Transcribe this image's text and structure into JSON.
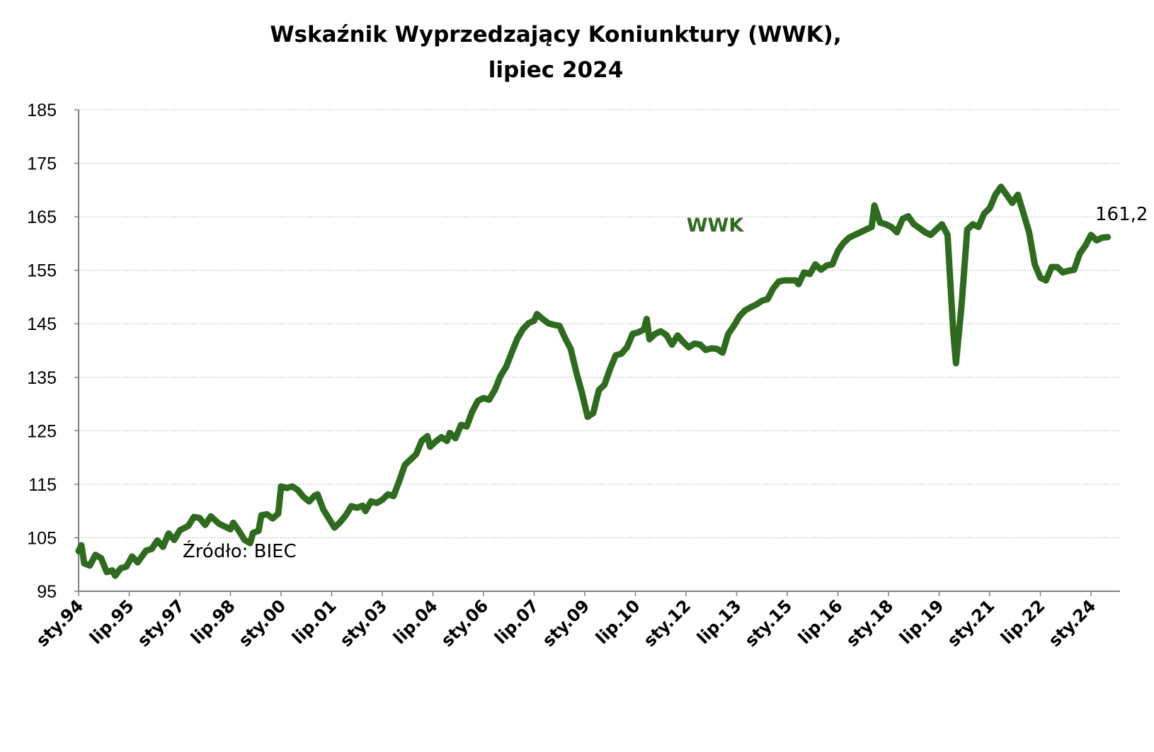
{
  "chart_data": {
    "type": "line",
    "title_line1": "Wskaźnik Wyprzedzający Koniunktury (WWK),",
    "title_line2": "lipiec 2024",
    "source": "Źródło: BIEC",
    "ylim": [
      95,
      185
    ],
    "yticks": [
      95,
      105,
      115,
      125,
      135,
      145,
      155,
      165,
      175,
      185
    ],
    "grid": "horizontal-dotted",
    "x_start": "1994-01",
    "x_end": "2024-07",
    "xtick_labels": [
      {
        "label": "sty.94",
        "date": "1994-01"
      },
      {
        "label": "lip.95",
        "date": "1995-07"
      },
      {
        "label": "sty.97",
        "date": "1997-01"
      },
      {
        "label": "lip.98",
        "date": "1998-07"
      },
      {
        "label": "sty.00",
        "date": "2000-01"
      },
      {
        "label": "lip.01",
        "date": "2001-07"
      },
      {
        "label": "sty.03",
        "date": "2003-01"
      },
      {
        "label": "lip.04",
        "date": "2004-07"
      },
      {
        "label": "sty.06",
        "date": "2006-01"
      },
      {
        "label": "lip.07",
        "date": "2007-07"
      },
      {
        "label": "sty.09",
        "date": "2009-01"
      },
      {
        "label": "lip.10",
        "date": "2010-07"
      },
      {
        "label": "sty.12",
        "date": "2012-01"
      },
      {
        "label": "lip.13",
        "date": "2013-07"
      },
      {
        "label": "sty.15",
        "date": "2015-01"
      },
      {
        "label": "lip.16",
        "date": "2016-07"
      },
      {
        "label": "sty.18",
        "date": "2018-01"
      },
      {
        "label": "lip.19",
        "date": "2019-07"
      },
      {
        "label": "sty.21",
        "date": "2021-01"
      },
      {
        "label": "lip.22",
        "date": "2022-07"
      },
      {
        "label": "sty.24",
        "date": "2024-01"
      }
    ],
    "series": [
      {
        "name": "WWK",
        "color": "#2e6b1f",
        "last_value_label": "161,2",
        "points": [
          [
            "1994-01",
            102.5
          ],
          [
            "1994-02",
            103.6
          ],
          [
            "1994-03",
            100.2
          ],
          [
            "1994-05",
            99.8
          ],
          [
            "1994-07",
            101.8
          ],
          [
            "1994-09",
            101.2
          ],
          [
            "1994-11",
            98.6
          ],
          [
            "1995-01",
            98.9
          ],
          [
            "1995-02",
            97.9
          ],
          [
            "1995-04",
            99.3
          ],
          [
            "1995-06",
            99.6
          ],
          [
            "1995-08",
            101.5
          ],
          [
            "1995-10",
            100.4
          ],
          [
            "1996-01",
            102.6
          ],
          [
            "1996-03",
            102.9
          ],
          [
            "1996-05",
            104.5
          ],
          [
            "1996-07",
            103.3
          ],
          [
            "1996-09",
            105.8
          ],
          [
            "1996-11",
            104.6
          ],
          [
            "1997-01",
            106.4
          ],
          [
            "1997-04",
            107.2
          ],
          [
            "1997-06",
            108.9
          ],
          [
            "1997-08",
            108.7
          ],
          [
            "1997-10",
            107.4
          ],
          [
            "1997-12",
            109.0
          ],
          [
            "1998-03",
            107.6
          ],
          [
            "1998-05",
            107.1
          ],
          [
            "1998-07",
            106.6
          ],
          [
            "1998-08",
            107.8
          ],
          [
            "1998-10",
            106.3
          ],
          [
            "1998-12",
            104.6
          ],
          [
            "1999-02",
            104.0
          ],
          [
            "1999-03",
            105.9
          ],
          [
            "1999-05",
            106.3
          ],
          [
            "1999-06",
            109.2
          ],
          [
            "1999-08",
            109.4
          ],
          [
            "1999-10",
            108.6
          ],
          [
            "1999-12",
            109.5
          ],
          [
            "2000-01",
            114.6
          ],
          [
            "2000-03",
            114.3
          ],
          [
            "2000-05",
            114.6
          ],
          [
            "2000-07",
            113.9
          ],
          [
            "2000-09",
            112.6
          ],
          [
            "2000-11",
            111.8
          ],
          [
            "2001-01",
            112.9
          ],
          [
            "2001-02",
            113.1
          ],
          [
            "2001-04",
            110.3
          ],
          [
            "2001-06",
            108.6
          ],
          [
            "2001-08",
            106.9
          ],
          [
            "2001-10",
            107.9
          ],
          [
            "2001-12",
            109.2
          ],
          [
            "2002-02",
            110.9
          ],
          [
            "2002-04",
            110.6
          ],
          [
            "2002-06",
            111.0
          ],
          [
            "2002-07",
            110.0
          ],
          [
            "2002-09",
            111.8
          ],
          [
            "2002-11",
            111.5
          ],
          [
            "2003-01",
            112.1
          ],
          [
            "2003-03",
            113.1
          ],
          [
            "2003-05",
            112.8
          ],
          [
            "2003-07",
            115.6
          ],
          [
            "2003-09",
            118.6
          ],
          [
            "2003-11",
            119.6
          ],
          [
            "2004-01",
            120.6
          ],
          [
            "2004-03",
            123.1
          ],
          [
            "2004-05",
            124.0
          ],
          [
            "2004-06",
            122.0
          ],
          [
            "2004-08",
            123.0
          ],
          [
            "2004-10",
            123.8
          ],
          [
            "2004-12",
            123.1
          ],
          [
            "2005-01",
            124.6
          ],
          [
            "2005-03",
            123.6
          ],
          [
            "2005-05",
            126.1
          ],
          [
            "2005-07",
            125.8
          ],
          [
            "2005-09",
            128.6
          ],
          [
            "2005-11",
            130.6
          ],
          [
            "2006-01",
            131.1
          ],
          [
            "2006-03",
            130.8
          ],
          [
            "2006-05",
            132.6
          ],
          [
            "2006-07",
            135.2
          ],
          [
            "2006-09",
            136.9
          ],
          [
            "2006-11",
            139.6
          ],
          [
            "2007-01",
            142.2
          ],
          [
            "2007-03",
            144.0
          ],
          [
            "2007-05",
            145.1
          ],
          [
            "2007-07",
            145.6
          ],
          [
            "2007-08",
            146.8
          ],
          [
            "2007-10",
            145.9
          ],
          [
            "2007-12",
            145.1
          ],
          [
            "2008-02",
            144.8
          ],
          [
            "2008-04",
            144.6
          ],
          [
            "2008-06",
            142.3
          ],
          [
            "2008-08",
            140.3
          ],
          [
            "2008-10",
            135.9
          ],
          [
            "2008-12",
            132.1
          ],
          [
            "2009-02",
            127.6
          ],
          [
            "2009-04",
            128.3
          ],
          [
            "2009-06",
            132.6
          ],
          [
            "2009-08",
            133.6
          ],
          [
            "2009-10",
            136.6
          ],
          [
            "2009-12",
            139.1
          ],
          [
            "2010-02",
            139.4
          ],
          [
            "2010-04",
            140.6
          ],
          [
            "2010-06",
            143.1
          ],
          [
            "2010-08",
            143.4
          ],
          [
            "2010-10",
            143.9
          ],
          [
            "2010-11",
            145.9
          ],
          [
            "2010-12",
            142.1
          ],
          [
            "2011-02",
            143.1
          ],
          [
            "2011-04",
            143.6
          ],
          [
            "2011-06",
            142.9
          ],
          [
            "2011-08",
            141.1
          ],
          [
            "2011-10",
            142.8
          ],
          [
            "2011-12",
            141.6
          ],
          [
            "2012-02",
            140.6
          ],
          [
            "2012-04",
            141.3
          ],
          [
            "2012-06",
            141.1
          ],
          [
            "2012-08",
            140.1
          ],
          [
            "2012-10",
            140.4
          ],
          [
            "2012-12",
            140.3
          ],
          [
            "2013-02",
            139.6
          ],
          [
            "2013-04",
            143.1
          ],
          [
            "2013-06",
            144.6
          ],
          [
            "2013-08",
            146.4
          ],
          [
            "2013-10",
            147.5
          ],
          [
            "2013-12",
            148.1
          ],
          [
            "2014-02",
            148.6
          ],
          [
            "2014-04",
            149.3
          ],
          [
            "2014-06",
            149.6
          ],
          [
            "2014-08",
            151.6
          ],
          [
            "2014-10",
            152.9
          ],
          [
            "2014-12",
            153.1
          ],
          [
            "2015-02",
            153.1
          ],
          [
            "2015-04",
            153.1
          ],
          [
            "2015-05",
            152.4
          ],
          [
            "2015-07",
            154.6
          ],
          [
            "2015-09",
            154.3
          ],
          [
            "2015-11",
            156.1
          ],
          [
            "2016-01",
            155.1
          ],
          [
            "2016-03",
            155.9
          ],
          [
            "2016-05",
            156.1
          ],
          [
            "2016-07",
            158.6
          ],
          [
            "2016-09",
            160.1
          ],
          [
            "2016-11",
            161.1
          ],
          [
            "2017-01",
            161.6
          ],
          [
            "2017-03",
            162.1
          ],
          [
            "2017-05",
            162.6
          ],
          [
            "2017-07",
            163.1
          ],
          [
            "2017-08",
            167.1
          ],
          [
            "2017-10",
            163.9
          ],
          [
            "2017-12",
            163.6
          ],
          [
            "2018-02",
            163.1
          ],
          [
            "2018-04",
            162.1
          ],
          [
            "2018-06",
            164.6
          ],
          [
            "2018-08",
            165.1
          ],
          [
            "2018-10",
            163.6
          ],
          [
            "2018-12",
            162.9
          ],
          [
            "2019-02",
            162.1
          ],
          [
            "2019-04",
            161.6
          ],
          [
            "2019-06",
            162.6
          ],
          [
            "2019-08",
            163.6
          ],
          [
            "2019-10",
            161.6
          ],
          [
            "2019-12",
            143.6
          ],
          [
            "2020-01",
            137.6
          ],
          [
            "2020-03",
            148.6
          ],
          [
            "2020-05",
            162.6
          ],
          [
            "2020-07",
            163.6
          ],
          [
            "2020-09",
            163.1
          ],
          [
            "2020-11",
            165.6
          ],
          [
            "2021-01",
            166.6
          ],
          [
            "2021-03",
            169.1
          ],
          [
            "2021-05",
            170.6
          ],
          [
            "2021-07",
            169.1
          ],
          [
            "2021-09",
            167.6
          ],
          [
            "2021-11",
            169.1
          ],
          [
            "2022-01",
            165.6
          ],
          [
            "2022-03",
            162.1
          ],
          [
            "2022-05",
            156.1
          ],
          [
            "2022-07",
            153.6
          ],
          [
            "2022-09",
            153.1
          ],
          [
            "2022-11",
            155.6
          ],
          [
            "2023-01",
            155.6
          ],
          [
            "2023-03",
            154.6
          ],
          [
            "2023-05",
            154.9
          ],
          [
            "2023-07",
            155.1
          ],
          [
            "2023-09",
            158.1
          ],
          [
            "2023-11",
            159.6
          ],
          [
            "2024-01",
            161.6
          ],
          [
            "2024-03",
            160.6
          ],
          [
            "2024-05",
            161.1
          ],
          [
            "2024-07",
            161.2
          ]
        ]
      }
    ]
  }
}
